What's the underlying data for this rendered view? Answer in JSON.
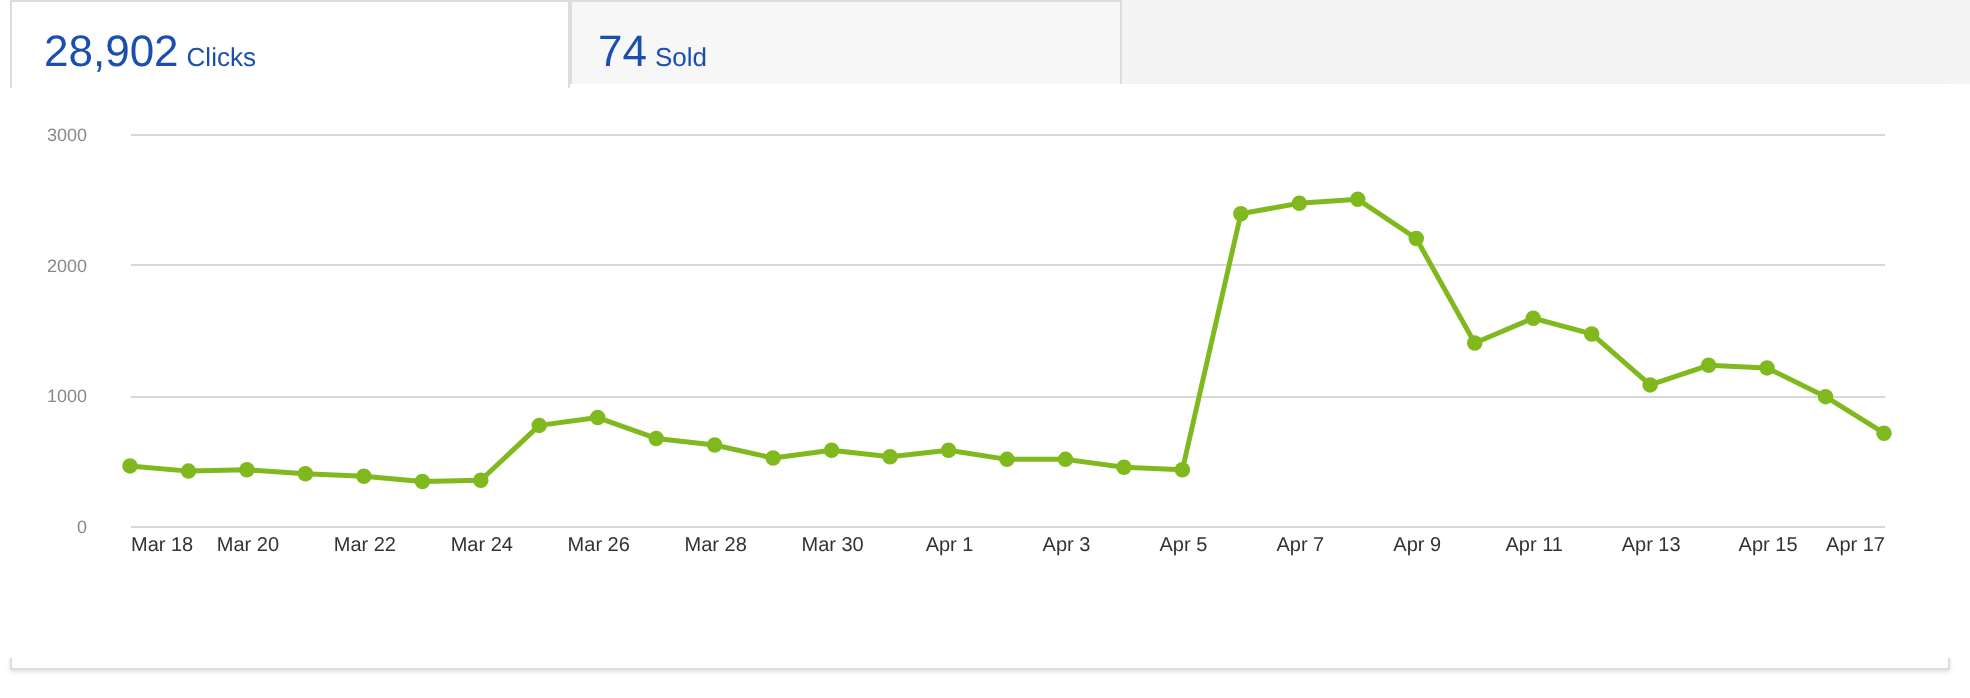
{
  "chart_data": {
    "type": "line",
    "annotations": [
      "28,902 Clicks",
      "74 Sold"
    ],
    "x": [
      "--03-18",
      "--03-19",
      "--03-20",
      "--03-21",
      "--03-22",
      "--03-23",
      "--03-24",
      "--03-25",
      "--03-26",
      "--03-27",
      "--03-28",
      "--03-29",
      "--03-30",
      "--03-31",
      "--04-01",
      "--04-02",
      "--04-03",
      "--04-04",
      "--04-05",
      "--04-06",
      "--04-07",
      "--04-08",
      "--04-09",
      "--04-10",
      "--04-11",
      "--04-12",
      "--04-13",
      "--04-14",
      "--04-15",
      "--04-16",
      "--04-17"
    ],
    "series": [
      {
        "color": "#80b91e",
        "values": [
          460,
          420,
          430,
          400,
          380,
          340,
          350,
          770,
          830,
          670,
          620,
          520,
          580,
          530,
          580,
          510,
          510,
          450,
          430,
          2390,
          2470,
          2500,
          2200,
          1400,
          1590,
          1470,
          1080,
          1230,
          1210,
          990,
          710
        ]
      }
    ],
    "xlim": [
      "--03-18",
      "--04-17"
    ],
    "xticks": [
      {
        "value": "--03-18",
        "label": "Mar 18"
      },
      {
        "value": "--03-20",
        "label": "Mar 20"
      },
      {
        "value": "--03-22",
        "label": "Mar 22"
      },
      {
        "value": "--03-24",
        "label": "Mar 24"
      },
      {
        "value": "--03-26",
        "label": "Mar 26"
      },
      {
        "value": "--03-28",
        "label": "Mar 28"
      },
      {
        "value": "--03-30",
        "label": "Mar 30"
      },
      {
        "value": "--04-01",
        "label": "Apr 1"
      },
      {
        "value": "--04-03",
        "label": "Apr 3"
      },
      {
        "value": "--04-05",
        "label": "Apr 5"
      },
      {
        "value": "--04-07",
        "label": "Apr 7"
      },
      {
        "value": "--04-09",
        "label": "Apr 9"
      },
      {
        "value": "--04-11",
        "label": "Apr 11"
      },
      {
        "value": "--04-13",
        "label": "Apr 13"
      },
      {
        "value": "--04-15",
        "label": "Apr 15"
      },
      {
        "value": "--04-17",
        "label": "Apr 17"
      }
    ],
    "ylim": [
      0,
      3000
    ],
    "yticks": [
      0,
      1000,
      2000,
      3000
    ],
    "grid": "y",
    "marker": "circle",
    "line_style": "solid",
    "legend": false
  }
}
